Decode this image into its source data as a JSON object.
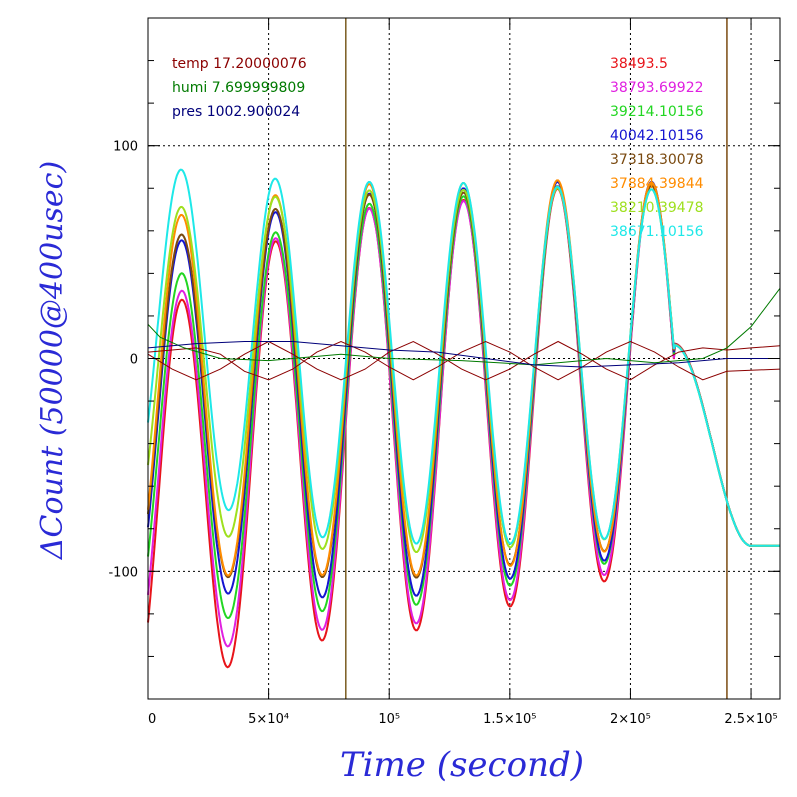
{
  "chart_data": {
    "type": "line",
    "xlabel": "Time (second)",
    "ylabel": "ΔCount (50000@400usec)",
    "xlim": [
      0,
      262000
    ],
    "ylim": [
      -160,
      160
    ],
    "grid": true,
    "x_ticks": [
      {
        "value": 0,
        "label": "0"
      },
      {
        "value": 50000,
        "label": "5×10⁴"
      },
      {
        "value": 100000,
        "label": "10⁵"
      },
      {
        "value": 150000,
        "label": "1.5×10⁵"
      },
      {
        "value": 200000,
        "label": "2×10⁵"
      },
      {
        "value": 250000,
        "label": "2.5×10⁵"
      }
    ],
    "y_ticks": [
      {
        "value": 100,
        "label": "100"
      },
      {
        "value": 0,
        "label": "0"
      },
      {
        "value": -100,
        "label": "-100"
      }
    ],
    "env_legend": [
      {
        "label": "temp 17.20000076",
        "color": "#8b0000"
      },
      {
        "label": "humi 7.699999809",
        "color": "#007a00"
      },
      {
        "label": "pres 1002.900024",
        "color": "#00007a"
      }
    ],
    "channel_legend": [
      {
        "label": "38493.5",
        "color": "#e8141a"
      },
      {
        "label": "38793.69922",
        "color": "#e020e0"
      },
      {
        "label": "39214.10156",
        "color": "#22d622"
      },
      {
        "label": "40042.10156",
        "color": "#1414d0"
      },
      {
        "label": "37318.30078",
        "color": "#7a4a10"
      },
      {
        "label": "37884.39844",
        "color": "#ff8c00"
      },
      {
        "label": "38210.39478",
        "color": "#9ee01e"
      },
      {
        "label": "38671.10156",
        "color": "#1ee8e8"
      }
    ],
    "vertical_markers": [
      {
        "x": 82000,
        "color": "#7a5c20"
      },
      {
        "x": 240000,
        "color": "#7a4a10"
      }
    ],
    "channel_series": [
      {
        "name": "38493.5",
        "color": "#e8141a",
        "amp": [
          90,
          95,
          100,
          100,
          96,
          92,
          90,
          88
        ],
        "off": [
          -70,
          -45,
          -30,
          -27,
          -17,
          -10,
          -5,
          0
        ]
      },
      {
        "name": "38793.69922",
        "color": "#e020e0",
        "amp": [
          85,
          92,
          98,
          98,
          95,
          90,
          88,
          85
        ],
        "off": [
          -60,
          -40,
          -28,
          -26,
          -15,
          -9,
          -5,
          0
        ]
      },
      {
        "name": "39214.10156",
        "color": "#22d622",
        "amp": [
          80,
          88,
          95,
          95,
          92,
          88,
          86,
          84
        ],
        "off": [
          -45,
          -33,
          -23,
          -20,
          -12,
          -6,
          -4,
          0
        ]
      },
      {
        "name": "40042.10156",
        "color": "#1414d0",
        "amp": [
          82,
          88,
          95,
          95,
          92,
          88,
          86,
          84
        ],
        "off": [
          -30,
          -22,
          -18,
          -16,
          -9,
          -5,
          -3,
          0
        ]
      },
      {
        "name": "37318.30078",
        "color": "#7a4a10",
        "amp": [
          80,
          85,
          90,
          90,
          88,
          85,
          84,
          82
        ],
        "off": [
          -25,
          -17,
          -13,
          -13,
          -7,
          -4,
          -2,
          0
        ]
      },
      {
        "name": "37884.39844",
        "color": "#ff8c00",
        "amp": [
          85,
          88,
          92,
          92,
          90,
          86,
          84,
          82
        ],
        "off": [
          -20,
          -13,
          -10,
          -10,
          -6,
          -3,
          -2,
          0
        ]
      },
      {
        "name": "38210.39478",
        "color": "#9ee01e",
        "amp": [
          75,
          80,
          85,
          85,
          84,
          82,
          80,
          78
        ],
        "off": [
          -5,
          -5,
          -6,
          -6,
          -4,
          -2,
          -2,
          0
        ]
      },
      {
        "name": "38671.10156",
        "color": "#1ee8e8",
        "amp": [
          75,
          80,
          85,
          85,
          84,
          82,
          80,
          78
        ],
        "off": [
          15,
          5,
          -2,
          -2,
          -3,
          -2,
          -2,
          0
        ]
      }
    ],
    "env_series": [
      {
        "name": "temp",
        "color": "#8b0000",
        "points": [
          [
            0,
            2
          ],
          [
            10000,
            -5
          ],
          [
            20000,
            -10
          ],
          [
            30000,
            -5
          ],
          [
            40000,
            2
          ],
          [
            50000,
            8
          ],
          [
            60000,
            2
          ],
          [
            70000,
            -5
          ],
          [
            80000,
            -10
          ],
          [
            90000,
            -5
          ],
          [
            100000,
            3
          ],
          [
            110000,
            8
          ],
          [
            120000,
            2
          ],
          [
            130000,
            -5
          ],
          [
            140000,
            -10
          ],
          [
            150000,
            -5
          ],
          [
            160000,
            2
          ],
          [
            170000,
            8
          ],
          [
            180000,
            2
          ],
          [
            190000,
            -5
          ],
          [
            200000,
            -10
          ],
          [
            210000,
            -3
          ],
          [
            220000,
            3
          ],
          [
            230000,
            5
          ],
          [
            240000,
            4
          ],
          [
            250000,
            5
          ],
          [
            262000,
            6
          ]
        ]
      },
      {
        "name": "temp-b",
        "color": "#8b0000",
        "points": [
          [
            0,
            3
          ],
          [
            20000,
            5
          ],
          [
            30000,
            2
          ],
          [
            40000,
            -6
          ],
          [
            50000,
            -10
          ],
          [
            60000,
            -5
          ],
          [
            70000,
            3
          ],
          [
            80000,
            8
          ],
          [
            90000,
            3
          ],
          [
            100000,
            -4
          ],
          [
            110000,
            -10
          ],
          [
            120000,
            -4
          ],
          [
            130000,
            3
          ],
          [
            140000,
            8
          ],
          [
            150000,
            3
          ],
          [
            160000,
            -4
          ],
          [
            170000,
            -10
          ],
          [
            180000,
            -4
          ],
          [
            190000,
            3
          ],
          [
            200000,
            8
          ],
          [
            210000,
            3
          ],
          [
            220000,
            -4
          ],
          [
            230000,
            -10
          ],
          [
            240000,
            -6
          ],
          [
            262000,
            -5
          ]
        ]
      },
      {
        "name": "humi",
        "color": "#007a00",
        "points": [
          [
            0,
            16
          ],
          [
            5000,
            10
          ],
          [
            15000,
            5
          ],
          [
            30000,
            0
          ],
          [
            50000,
            -1
          ],
          [
            80000,
            2
          ],
          [
            100000,
            0
          ],
          [
            130000,
            -1
          ],
          [
            160000,
            -3
          ],
          [
            190000,
            0
          ],
          [
            210000,
            -2
          ],
          [
            230000,
            0
          ],
          [
            240000,
            5
          ],
          [
            250000,
            15
          ],
          [
            262000,
            33
          ]
        ]
      },
      {
        "name": "pres",
        "color": "#00007a",
        "points": [
          [
            0,
            5
          ],
          [
            20000,
            7
          ],
          [
            40000,
            8
          ],
          [
            60000,
            8
          ],
          [
            80000,
            6
          ],
          [
            100000,
            4
          ],
          [
            120000,
            3
          ],
          [
            140000,
            0
          ],
          [
            160000,
            -3
          ],
          [
            180000,
            -4
          ],
          [
            200000,
            -3
          ],
          [
            220000,
            -2
          ],
          [
            240000,
            0
          ],
          [
            262000,
            0
          ]
        ]
      }
    ]
  }
}
